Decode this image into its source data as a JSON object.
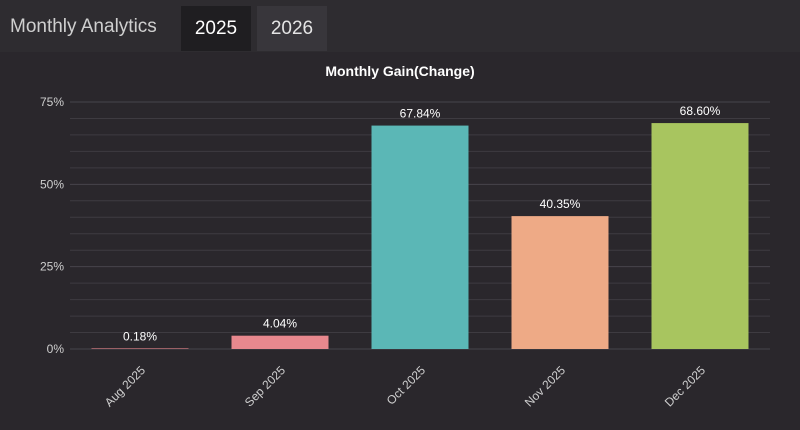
{
  "header": {
    "title": "Monthly Analytics",
    "tabs": [
      {
        "label": "2025",
        "active": true
      },
      {
        "label": "2026",
        "active": false
      }
    ]
  },
  "colors": {
    "background": "#2a272c",
    "gridline": "#3e3b41",
    "text": "#ffffff",
    "tick_text": "#cfcfcf"
  },
  "chart_data": {
    "type": "bar",
    "title": "Monthly Gain(Change)",
    "xlabel": "",
    "ylabel": "",
    "categories": [
      "Aug 2025",
      "Sep 2025",
      "Oct 2025",
      "Nov 2025",
      "Dec 2025"
    ],
    "values": [
      0.18,
      4.04,
      67.84,
      40.35,
      68.6
    ],
    "data_labels": [
      "0.18%",
      "4.04%",
      "67.84%",
      "40.35%",
      "68.60%"
    ],
    "colors": [
      "#e8888e",
      "#e8888e",
      "#5bb7b6",
      "#eeaa86",
      "#a8c55f"
    ],
    "ylim": [
      0,
      75
    ],
    "yticks": [
      0,
      25,
      50,
      75
    ],
    "ytick_labels": [
      "0%",
      "25%",
      "50%",
      "75%"
    ],
    "grid": true,
    "legend": "none"
  }
}
